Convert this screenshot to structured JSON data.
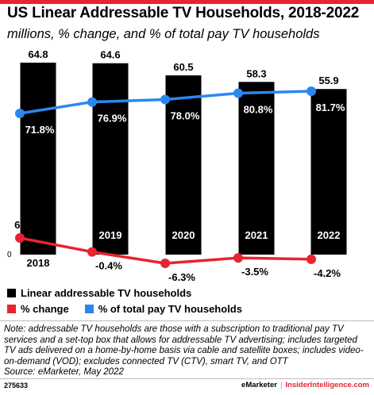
{
  "title": "US Linear Addressable TV Households, 2018-2022",
  "subtitle": "millions, % change, and % of total pay TV households",
  "chart_data": {
    "type": "bar",
    "categories": [
      "2018",
      "2019",
      "2020",
      "2021",
      "2022"
    ],
    "series": [
      {
        "name": "Linear addressable TV households",
        "type": "bar",
        "values": [
          64.8,
          64.6,
          60.5,
          58.3,
          55.9
        ],
        "labels": [
          "64.8",
          "64.6",
          "60.5",
          "58.3",
          "55.9"
        ]
      },
      {
        "name": "% change",
        "type": "line",
        "values": [
          6.8,
          -0.4,
          -6.3,
          -3.5,
          -4.2
        ],
        "labels": [
          "6.8%",
          "-0.4%",
          "-6.3%",
          "-3.5%",
          "-4.2%"
        ]
      },
      {
        "name": "% of total pay TV households",
        "type": "line",
        "values": [
          71.8,
          76.9,
          78.0,
          80.8,
          81.7
        ],
        "labels": [
          "71.8%",
          "76.9%",
          "78.0%",
          "80.8%",
          "81.7%"
        ]
      }
    ],
    "zero_label": "0",
    "colors": {
      "bar": "#000000",
      "change": "#e8242e",
      "share": "#2b87f0"
    },
    "legend_position": "bottom-left"
  },
  "legend": {
    "bar": "Linear addressable TV households",
    "change": "% change",
    "share": "% of total pay TV households"
  },
  "note": "Note: addressable TV households are those with a subscription to traditional pay TV services and a set-top box that allows for addressable TV advertising; includes targeted TV ads delivered on a home-by-home basis via cable and satellite boxes; includes video-on-demand (VOD); excludes connected TV (CTV), smart TV, and OTT",
  "source": "Source: eMarketer, May 2022",
  "footer": {
    "id": "275633",
    "brand": "eMarketer",
    "separator": "|",
    "site": "InsiderIntelligence.com"
  }
}
